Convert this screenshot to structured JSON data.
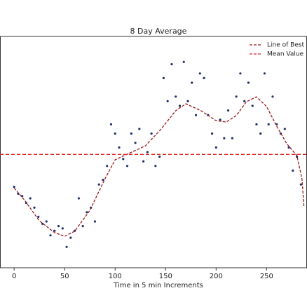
{
  "chart_data": {
    "type": "scatter",
    "title": "8 Day Average",
    "xlabel": "Time in 5 min Increments",
    "xlim": [
      -14,
      290
    ],
    "ylim": [
      0,
      100
    ],
    "xticks": [
      0,
      50,
      100,
      150,
      200,
      250
    ],
    "legend": "upper right",
    "points": {
      "color": "#1f2f6e",
      "x": [
        0,
        4,
        8,
        12,
        16,
        20,
        24,
        28,
        32,
        36,
        40,
        44,
        48,
        52,
        56,
        60,
        64,
        68,
        72,
        76,
        80,
        84,
        88,
        92,
        96,
        100,
        104,
        108,
        112,
        116,
        120,
        124,
        128,
        132,
        136,
        140,
        144,
        148,
        152,
        156,
        160,
        164,
        168,
        172,
        176,
        180,
        184,
        188,
        192,
        196,
        200,
        204,
        208,
        212,
        216,
        220,
        224,
        228,
        232,
        236,
        240,
        244,
        248,
        252,
        256,
        260,
        264,
        268,
        272,
        276,
        280,
        284
      ],
      "values": [
        35,
        32,
        31,
        28,
        30,
        26,
        22,
        19,
        20,
        14,
        16,
        18,
        17,
        9,
        13,
        16,
        30,
        18,
        24,
        26,
        20,
        36,
        38,
        44,
        62,
        58,
        52,
        47,
        44,
        58,
        54,
        60,
        46,
        50,
        58,
        44,
        48,
        82,
        72,
        88,
        74,
        70,
        89,
        72,
        80,
        66,
        84,
        82,
        66,
        58,
        52,
        64,
        56,
        68,
        56,
        74,
        84,
        72,
        80,
        70,
        62,
        58,
        84,
        62,
        74,
        62,
        58,
        60,
        52,
        42,
        48,
        36
      ]
    },
    "series": [
      {
        "name": "Line of Best Fit",
        "color": "#9b1c1c",
        "kind": "line",
        "x": [
          0,
          10,
          25,
          40,
          50,
          60,
          75,
          90,
          100,
          115,
          130,
          145,
          160,
          170,
          185,
          200,
          210,
          220,
          230,
          240,
          250,
          260,
          270,
          280,
          285,
          287
        ],
        "values": [
          34.5,
          29.4,
          20.3,
          15.2,
          13.6,
          15.8,
          24.8,
          38.5,
          46.7,
          49.7,
          52.7,
          59.7,
          67.9,
          70.9,
          67.9,
          63.6,
          63.0,
          65.8,
          71.8,
          73.9,
          69.7,
          61.2,
          53.6,
          48.5,
          38.5,
          26.4
        ]
      },
      {
        "name": "Mean Value",
        "color": "#e02020",
        "kind": "hline",
        "values": [
          49
        ]
      }
    ]
  }
}
